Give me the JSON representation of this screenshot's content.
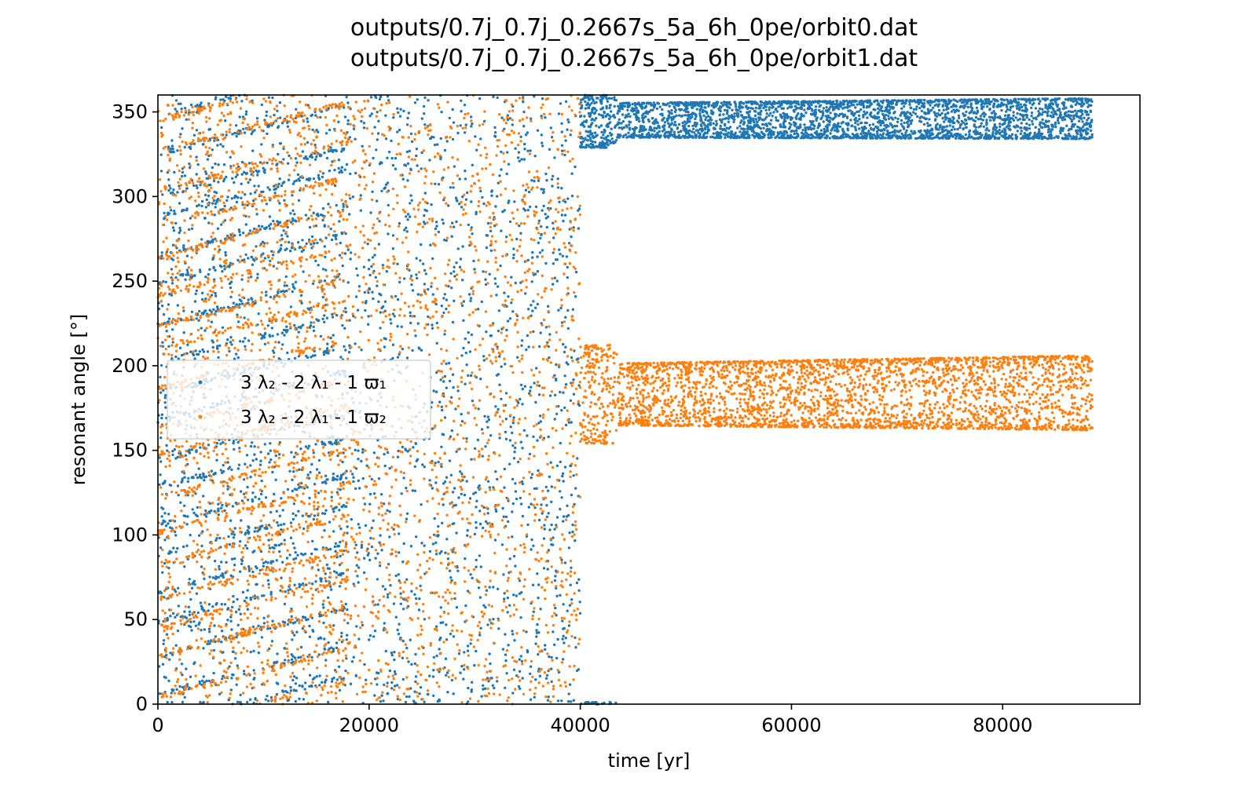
{
  "chart_data": {
    "type": "scatter",
    "title_lines": [
      "outputs/0.7j_0.7j_0.2667s_5a_6h_0pe/orbit0.dat",
      "outputs/0.7j_0.7j_0.2667s_5a_6h_0pe/orbit1.dat"
    ],
    "xlabel": "time [yr]",
    "ylabel": "resonant angle [°]",
    "xlim": [
      0,
      93000
    ],
    "ylim": [
      0,
      360
    ],
    "x_ticks": [
      0,
      20000,
      40000,
      60000,
      80000
    ],
    "x_tick_labels": [
      "0",
      "20000",
      "40000",
      "60000",
      "80000"
    ],
    "y_ticks": [
      0,
      50,
      100,
      150,
      200,
      250,
      300,
      350
    ],
    "y_tick_labels": [
      "0",
      "50",
      "100",
      "150",
      "200",
      "250",
      "300",
      "350"
    ],
    "grid": false,
    "legend_position": "center-left",
    "series": [
      {
        "name": "3 λ₂ - 2 λ₁ - 1 ϖ₁",
        "color": "#1f77b4",
        "x_range": [
          0,
          88500
        ],
        "circulating_until": 40000,
        "libration_bands": [
          {
            "from": 40000,
            "to": 88500,
            "center_start": 345,
            "center_end": 346,
            "half_width_start": 10,
            "half_width_end": 12,
            "wraps": true
          }
        ]
      },
      {
        "name": "3 λ₂ - 2 λ₁ - 1 ϖ₂",
        "color": "#ff7f0e",
        "x_range": [
          0,
          88500
        ],
        "circulating_until": 40000,
        "libration_bands": [
          {
            "from": 40000,
            "to": 88500,
            "center_start": 183,
            "center_end": 184,
            "half_width_start": 18,
            "half_width_end": 22,
            "wraps": false
          }
        ]
      }
    ]
  }
}
